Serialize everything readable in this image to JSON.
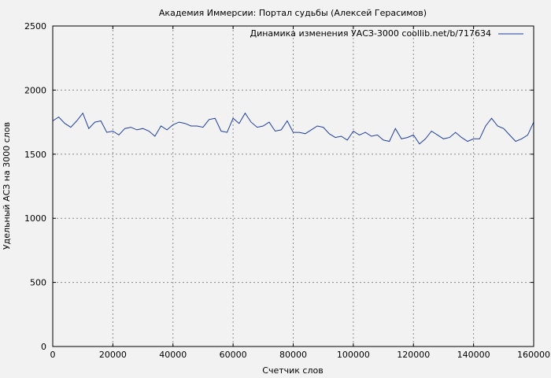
{
  "chart_data": {
    "type": "line",
    "title": "Академия Иммерсии: Портал судьбы (Алексей Герасимов)",
    "xlabel": "Счетчик слов",
    "ylabel": "Удельный АСЗ на 3000 слов",
    "xlim": [
      0,
      160000
    ],
    "ylim": [
      0,
      2500
    ],
    "x_ticks": [
      0,
      20000,
      40000,
      60000,
      80000,
      100000,
      120000,
      140000,
      160000
    ],
    "y_ticks": [
      0,
      500,
      1000,
      1500,
      2000,
      2500
    ],
    "grid": true,
    "legend_position": "top-right",
    "series": [
      {
        "name": "Динамика изменения УАСЗ-3000 coollib.net/b/717634",
        "color": "#1f3f9f",
        "x": [
          0,
          2000,
          4000,
          6000,
          8000,
          10000,
          12000,
          14000,
          16000,
          18000,
          20000,
          22000,
          24000,
          26000,
          28000,
          30000,
          32000,
          34000,
          36000,
          38000,
          40000,
          42000,
          44000,
          46000,
          48000,
          50000,
          52000,
          54000,
          56000,
          58000,
          60000,
          62000,
          64000,
          66000,
          68000,
          70000,
          72000,
          74000,
          76000,
          78000,
          80000,
          82000,
          84000,
          86000,
          88000,
          90000,
          92000,
          94000,
          96000,
          98000,
          100000,
          102000,
          104000,
          106000,
          108000,
          110000,
          112000,
          114000,
          116000,
          118000,
          120000,
          122000,
          124000,
          126000,
          128000,
          130000,
          132000,
          134000,
          136000,
          138000,
          140000,
          142000,
          144000,
          146000,
          148000,
          150000,
          152000,
          154000,
          156000,
          158000,
          160000
        ],
        "values": [
          1760,
          1790,
          1740,
          1710,
          1760,
          1820,
          1700,
          1750,
          1760,
          1670,
          1680,
          1650,
          1700,
          1710,
          1690,
          1700,
          1680,
          1640,
          1720,
          1690,
          1730,
          1750,
          1740,
          1720,
          1720,
          1710,
          1770,
          1780,
          1680,
          1670,
          1780,
          1740,
          1820,
          1750,
          1710,
          1720,
          1750,
          1680,
          1690,
          1760,
          1670,
          1670,
          1660,
          1690,
          1720,
          1710,
          1660,
          1630,
          1640,
          1610,
          1680,
          1650,
          1670,
          1640,
          1650,
          1610,
          1600,
          1700,
          1620,
          1630,
          1650,
          1580,
          1620,
          1680,
          1650,
          1620,
          1630,
          1670,
          1630,
          1600,
          1620,
          1620,
          1720,
          1780,
          1720,
          1700,
          1650,
          1600,
          1620,
          1650,
          1750
        ]
      }
    ]
  }
}
